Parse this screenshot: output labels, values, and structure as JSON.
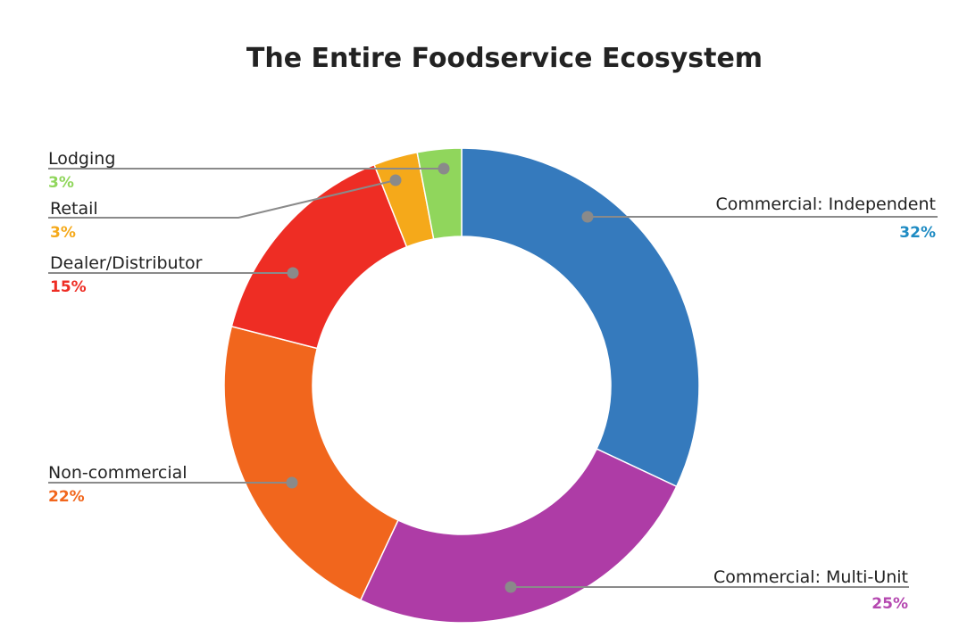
{
  "chart_data": {
    "type": "pie",
    "title": "The Entire Foodservice Ecosystem",
    "slices": [
      {
        "label": "Commercial: Independent",
        "value": 32,
        "value_label": "32%",
        "color": "#357ABD",
        "label_color": "#1E8BC3"
      },
      {
        "label": "Commercial: Multi-Unit",
        "value": 25,
        "value_label": "25%",
        "color": "#AE3CA6",
        "label_color": "#B548B0"
      },
      {
        "label": "Non-commercial",
        "value": 22,
        "value_label": "22%",
        "color": "#F1661D",
        "label_color": "#F1661D"
      },
      {
        "label": "Dealer/Distributor",
        "value": 15,
        "value_label": "15%",
        "color": "#EE2D24",
        "label_color": "#EE2D24"
      },
      {
        "label": "Retail",
        "value": 3,
        "value_label": "3%",
        "color": "#F5A91A",
        "label_color": "#F5A91A"
      },
      {
        "label": "Lodging",
        "value": 3,
        "value_label": "3%",
        "color": "#90D65C",
        "label_color": "#90D65C"
      }
    ],
    "legend": "callouts with leader lines",
    "donut": true
  }
}
